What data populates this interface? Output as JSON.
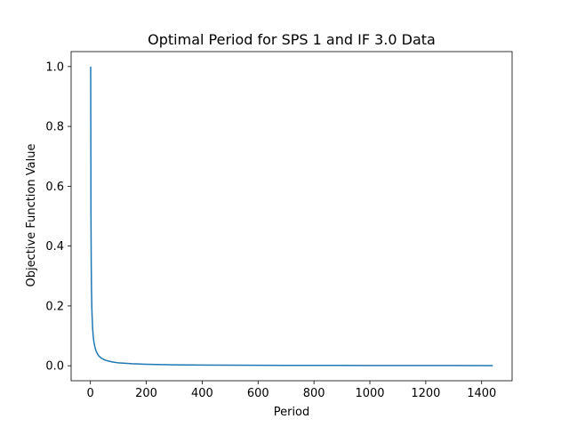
{
  "chart_data": {
    "type": "line",
    "title": "Optimal Period for SPS 1 and IF 3.0 Data",
    "xlabel": "Period",
    "ylabel": "Objective Function Value",
    "xlim": [
      -69,
      1509
    ],
    "ylim": [
      -0.05,
      1.05
    ],
    "xticks": [
      0,
      200,
      400,
      600,
      800,
      1000,
      1200,
      1400
    ],
    "xtick_labels": [
      "0",
      "200",
      "400",
      "600",
      "800",
      "1000",
      "1200",
      "1400"
    ],
    "yticks": [
      0.0,
      0.2,
      0.4,
      0.6,
      0.8,
      1.0
    ],
    "ytick_labels": [
      "0.0",
      "0.2",
      "0.4",
      "0.6",
      "0.8",
      "1.0"
    ],
    "grid": false,
    "series": [
      {
        "color": "#1f77b4",
        "x": [
          1,
          2,
          3,
          4,
          5,
          6,
          8,
          10,
          12,
          15,
          20,
          25,
          30,
          40,
          50,
          60,
          80,
          100,
          150,
          200,
          300,
          400,
          500,
          600,
          700,
          800,
          1000,
          1200,
          1440
        ],
        "y": [
          1.0,
          0.5,
          0.333,
          0.25,
          0.2,
          0.167,
          0.125,
          0.1,
          0.083,
          0.067,
          0.05,
          0.04,
          0.033,
          0.025,
          0.02,
          0.017,
          0.0125,
          0.01,
          0.0067,
          0.005,
          0.0033,
          0.0025,
          0.002,
          0.0017,
          0.0014,
          0.0012,
          0.001,
          0.0008,
          0.0007
        ]
      }
    ]
  }
}
